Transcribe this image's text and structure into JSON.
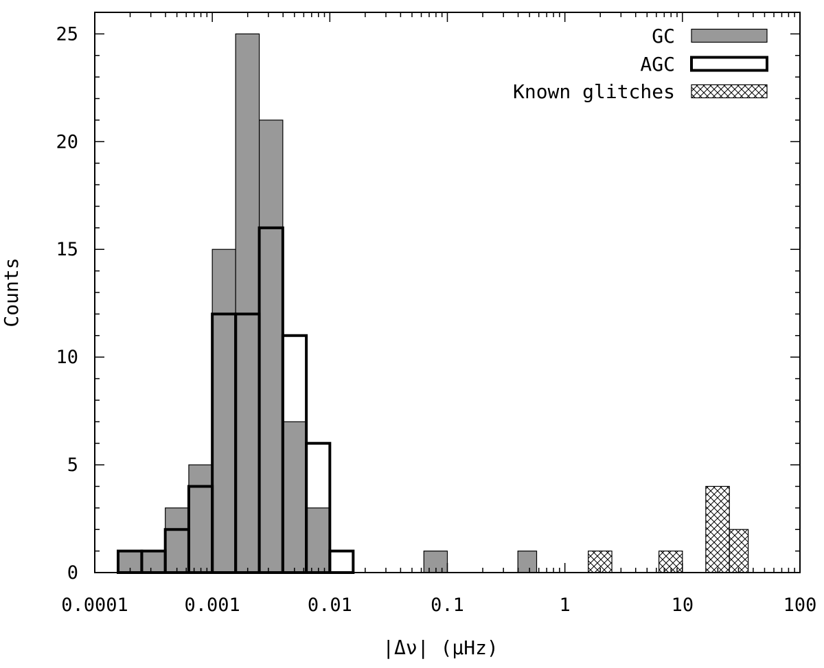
{
  "chart_data": {
    "type": "bar",
    "xlabel": "|Δν| (μHz)",
    "ylabel": "Counts",
    "x_scale": "log",
    "xlim": [
      0.0001,
      100
    ],
    "ylim": [
      0,
      26
    ],
    "x_tick_labels": [
      "0.0001",
      "0.001",
      "0.01",
      "0.1",
      "1",
      "10",
      "100"
    ],
    "y_tick_labels": [
      "0",
      "5",
      "10",
      "15",
      "20",
      "25"
    ],
    "legend_position": "top-right",
    "series": [
      {
        "name": "GC",
        "style": "filled",
        "color": "#999999",
        "bins": [
          {
            "x0": 0.000158,
            "x1": 0.000251,
            "count": 1
          },
          {
            "x0": 0.000251,
            "x1": 0.000398,
            "count": 1
          },
          {
            "x0": 0.000398,
            "x1": 0.000631,
            "count": 3
          },
          {
            "x0": 0.000631,
            "x1": 0.001,
            "count": 5
          },
          {
            "x0": 0.001,
            "x1": 0.00158,
            "count": 15
          },
          {
            "x0": 0.00158,
            "x1": 0.00251,
            "count": 25
          },
          {
            "x0": 0.00251,
            "x1": 0.00398,
            "count": 21
          },
          {
            "x0": 0.00398,
            "x1": 0.00631,
            "count": 7
          },
          {
            "x0": 0.00631,
            "x1": 0.01,
            "count": 3
          },
          {
            "x0": 0.0631,
            "x1": 0.1,
            "count": 1
          },
          {
            "x0": 0.398,
            "x1": 0.575,
            "count": 1
          }
        ]
      },
      {
        "name": "AGC",
        "style": "outline",
        "color": "#000000",
        "bins": [
          {
            "x0": 0.000158,
            "x1": 0.000251,
            "count": 1
          },
          {
            "x0": 0.000251,
            "x1": 0.000398,
            "count": 1
          },
          {
            "x0": 0.000398,
            "x1": 0.000631,
            "count": 2
          },
          {
            "x0": 0.000631,
            "x1": 0.001,
            "count": 4
          },
          {
            "x0": 0.001,
            "x1": 0.00158,
            "count": 12
          },
          {
            "x0": 0.00158,
            "x1": 0.00251,
            "count": 12
          },
          {
            "x0": 0.00251,
            "x1": 0.00398,
            "count": 16
          },
          {
            "x0": 0.00398,
            "x1": 0.00631,
            "count": 11
          },
          {
            "x0": 0.00631,
            "x1": 0.01,
            "count": 6
          },
          {
            "x0": 0.01,
            "x1": 0.0158,
            "count": 1
          }
        ]
      },
      {
        "name": "Known glitches",
        "style": "crosshatch",
        "color": "#000000",
        "bins": [
          {
            "x0": 1.58,
            "x1": 2.51,
            "count": 1
          },
          {
            "x0": 6.31,
            "x1": 10,
            "count": 1
          },
          {
            "x0": 15.8,
            "x1": 25.1,
            "count": 4
          },
          {
            "x0": 25.1,
            "x1": 36.3,
            "count": 2
          }
        ]
      }
    ]
  }
}
